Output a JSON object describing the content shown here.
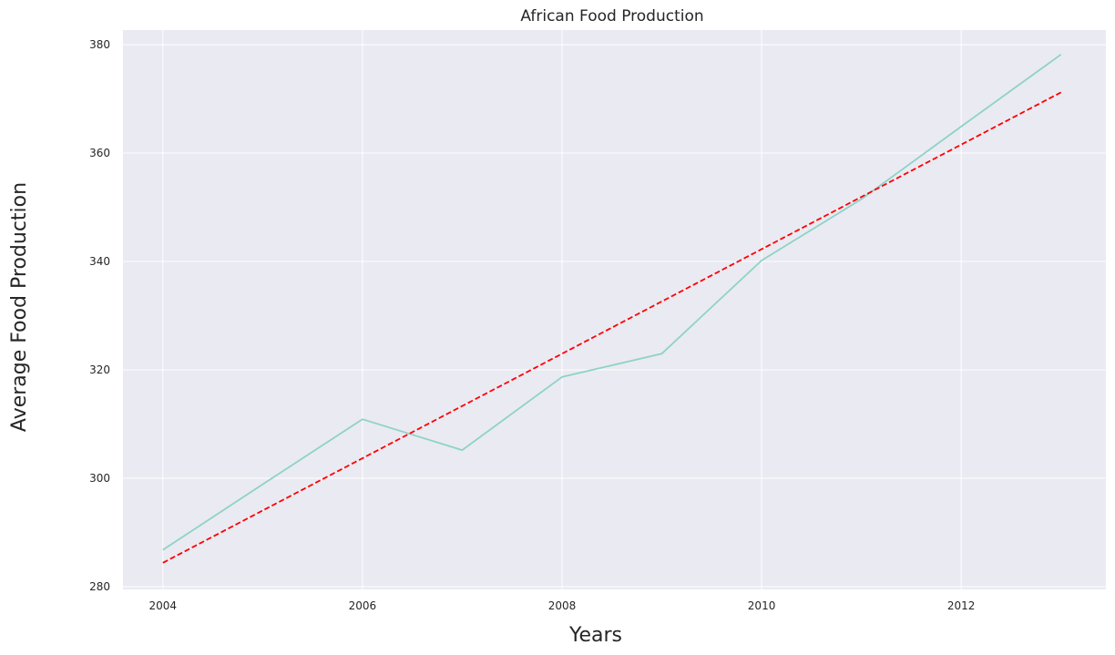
{
  "chart_data": {
    "type": "line",
    "title": "African Food Production",
    "xlabel": "Years",
    "ylabel": "Average Food Production",
    "xlim": [
      2003.6,
      2013.45
    ],
    "ylim": [
      279.5,
      382.7
    ],
    "x_ticks": [
      2004,
      2006,
      2008,
      2010,
      2012
    ],
    "y_ticks": [
      280,
      300,
      320,
      340,
      360,
      380
    ],
    "grid": true,
    "series": [
      {
        "style": "solid",
        "color": "#8dd3c7",
        "x": [
          2004,
          2005,
          2006,
          2007,
          2008,
          2009,
          2010,
          2011,
          2012,
          2013
        ],
        "values": [
          286.8,
          298.9,
          310.9,
          305.2,
          318.7,
          323.0,
          340.2,
          351.5,
          364.9,
          378.2
        ]
      },
      {
        "style": "dashed",
        "color": "#ff0000",
        "x": [
          2004,
          2013
        ],
        "values": [
          284.4,
          371.2
        ]
      }
    ]
  }
}
